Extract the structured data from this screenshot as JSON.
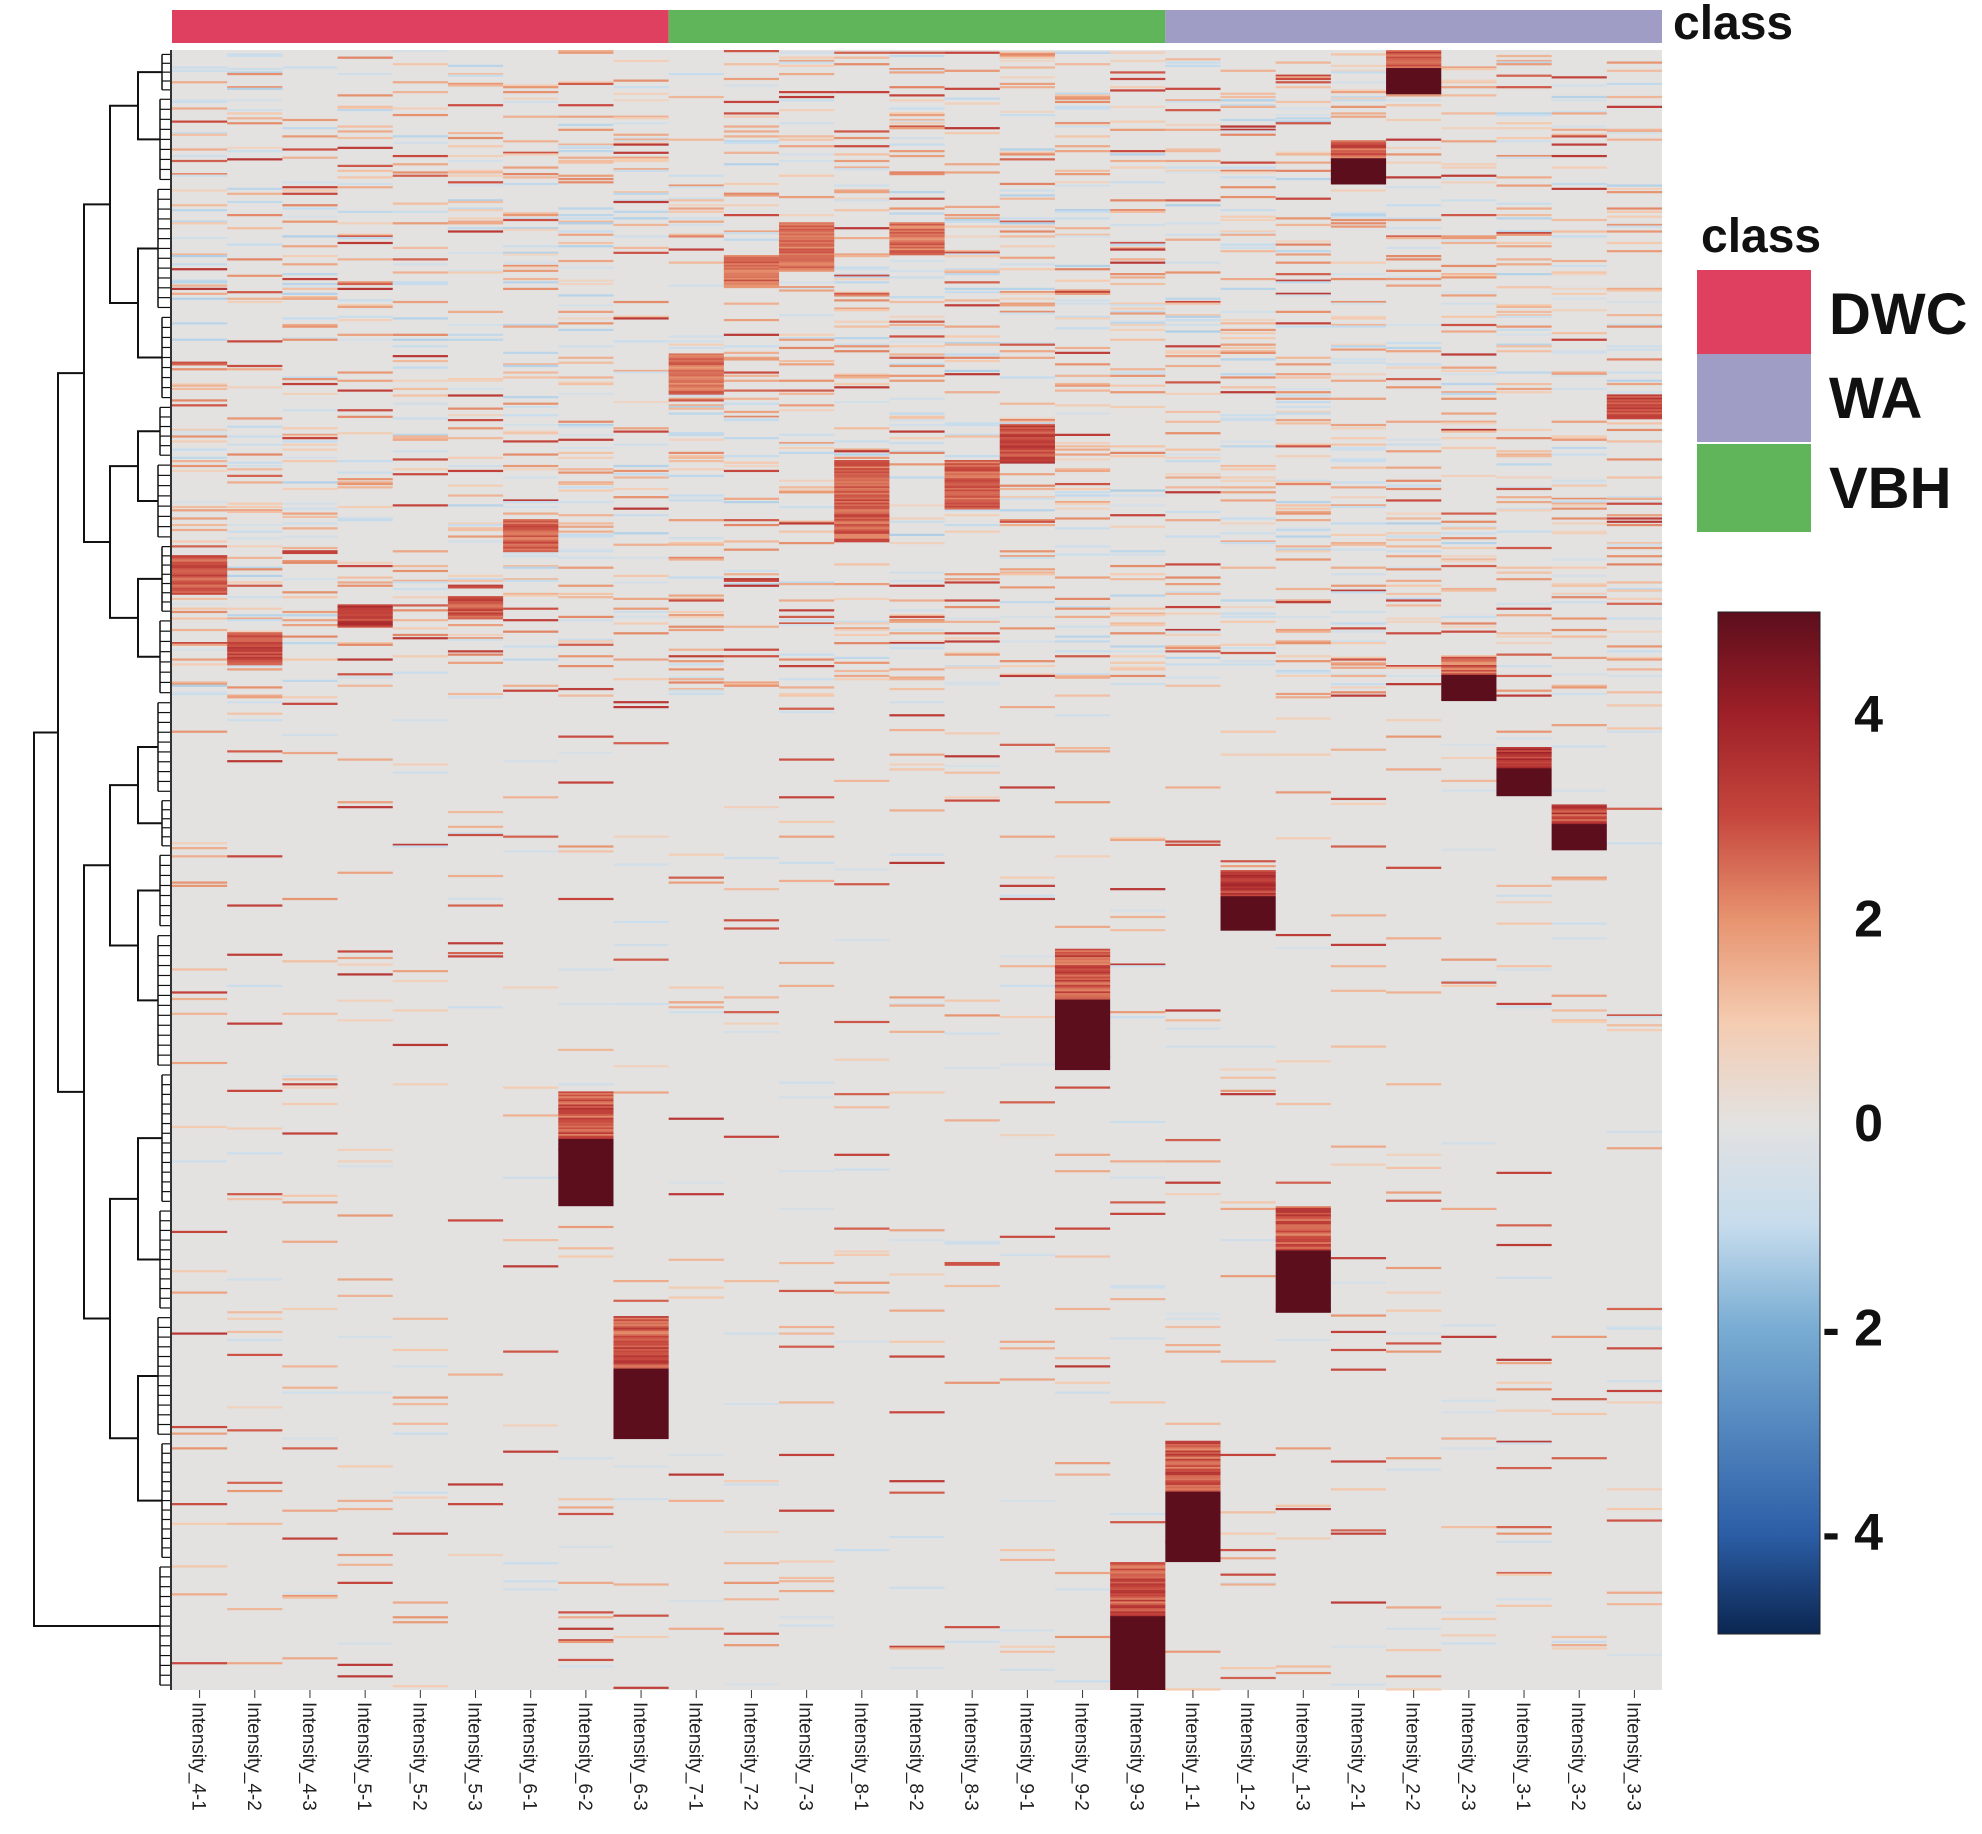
{
  "chart_data": {
    "type": "heatmap",
    "title": "",
    "row_count": 1000,
    "columns": [
      {
        "label": "Intensity_4-1",
        "class": "DWC"
      },
      {
        "label": "Intensity_4-2",
        "class": "DWC"
      },
      {
        "label": "Intensity_4-3",
        "class": "DWC"
      },
      {
        "label": "Intensity_5-1",
        "class": "DWC"
      },
      {
        "label": "Intensity_5-2",
        "class": "DWC"
      },
      {
        "label": "Intensity_5-3",
        "class": "DWC"
      },
      {
        "label": "Intensity_6-1",
        "class": "DWC"
      },
      {
        "label": "Intensity_6-2",
        "class": "DWC"
      },
      {
        "label": "Intensity_6-3",
        "class": "DWC"
      },
      {
        "label": "Intensity_7-1",
        "class": "VBH"
      },
      {
        "label": "Intensity_7-2",
        "class": "VBH"
      },
      {
        "label": "Intensity_7-3",
        "class": "VBH"
      },
      {
        "label": "Intensity_8-1",
        "class": "VBH"
      },
      {
        "label": "Intensity_8-2",
        "class": "VBH"
      },
      {
        "label": "Intensity_8-3",
        "class": "VBH"
      },
      {
        "label": "Intensity_9-1",
        "class": "VBH"
      },
      {
        "label": "Intensity_9-2",
        "class": "VBH"
      },
      {
        "label": "Intensity_9-3",
        "class": "VBH"
      },
      {
        "label": "Intensity_1-1",
        "class": "WA"
      },
      {
        "label": "Intensity_1-2",
        "class": "WA"
      },
      {
        "label": "Intensity_1-3",
        "class": "WA"
      },
      {
        "label": "Intensity_2-1",
        "class": "WA"
      },
      {
        "label": "Intensity_2-2",
        "class": "WA"
      },
      {
        "label": "Intensity_2-3",
        "class": "WA"
      },
      {
        "label": "Intensity_3-1",
        "class": "WA"
      },
      {
        "label": "Intensity_3-2",
        "class": "WA"
      },
      {
        "label": "Intensity_3-3",
        "class": "WA"
      }
    ],
    "class_annotation": {
      "title": "class",
      "legend_title": "class",
      "legend_entries": [
        {
          "name": "DWC",
          "color": "#e0405f"
        },
        {
          "name": "WA",
          "color": "#9f9cc6"
        },
        {
          "name": "VBH",
          "color": "#60b55b"
        }
      ]
    },
    "color_scale": {
      "min": -5,
      "max": 5,
      "ticks": [
        {
          "value": 4,
          "label": "4"
        },
        {
          "value": 2,
          "label": "2"
        },
        {
          "value": 0,
          "label": "0"
        },
        {
          "value": -2,
          "label": "- 2"
        },
        {
          "value": -4,
          "label": "- 4"
        }
      ],
      "stops": [
        {
          "value": -5,
          "color": "#0b2651"
        },
        {
          "value": -4,
          "color": "#2d5fa8"
        },
        {
          "value": -2,
          "color": "#79add3"
        },
        {
          "value": -1,
          "color": "#c6dced"
        },
        {
          "value": 0,
          "color": "#e3e2e1"
        },
        {
          "value": 1,
          "color": "#f4cbb0"
        },
        {
          "value": 2,
          "color": "#e7936f"
        },
        {
          "value": 3,
          "color": "#c6463d"
        },
        {
          "value": 4,
          "color": "#9e1f27"
        },
        {
          "value": 5,
          "color": "#5c0e1c"
        }
      ]
    },
    "high_blocks": [
      {
        "column": "Intensity_2-2",
        "rows": [
          0,
          27
        ],
        "value": 5,
        "lead_value": 2.8
      },
      {
        "column": "Intensity_2-1",
        "rows": [
          55,
          82
        ],
        "value": 5,
        "lead_value": 2.8
      },
      {
        "column": "Intensity_2-3",
        "rows": [
          370,
          397
        ],
        "value": 5,
        "lead_value": 2.6
      },
      {
        "column": "Intensity_3-1",
        "rows": [
          425,
          455
        ],
        "value": 5,
        "lead_value": 3.4
      },
      {
        "column": "Intensity_3-2",
        "rows": [
          460,
          488
        ],
        "value": 5,
        "lead_value": 3.0
      },
      {
        "column": "Intensity_1-2",
        "rows": [
          500,
          537
        ],
        "value": 5,
        "lead_value": 3.2
      },
      {
        "column": "Intensity_9-2",
        "rows": [
          548,
          622
        ],
        "value": 5,
        "lead_value": 2.8
      },
      {
        "column": "Intensity_6-2",
        "rows": [
          635,
          705
        ],
        "value": 5,
        "lead_value": 2.8
      },
      {
        "column": "Intensity_1-3",
        "rows": [
          705,
          770
        ],
        "value": 5,
        "lead_value": 2.8
      },
      {
        "column": "Intensity_6-3",
        "rows": [
          772,
          847
        ],
        "value": 5,
        "lead_value": 2.8
      },
      {
        "column": "Intensity_1-1",
        "rows": [
          848,
          922
        ],
        "value": 5,
        "lead_value": 2.8
      },
      {
        "column": "Intensity_9-3",
        "rows": [
          922,
          1000
        ],
        "value": 5,
        "lead_value": 2.8
      }
    ],
    "moderate_blocks": [
      {
        "column": "Intensity_4-1",
        "rows": [
          308,
          332
        ],
        "value": 2.8
      },
      {
        "column": "Intensity_4-2",
        "rows": [
          355,
          375
        ],
        "value": 3.0
      },
      {
        "column": "Intensity_5-1",
        "rows": [
          338,
          352
        ],
        "value": 3.2
      },
      {
        "column": "Intensity_5-3",
        "rows": [
          333,
          347
        ],
        "value": 2.8
      },
      {
        "column": "Intensity_6-1",
        "rows": [
          286,
          306
        ],
        "value": 2.6
      },
      {
        "column": "Intensity_7-1",
        "rows": [
          185,
          210
        ],
        "value": 2.4
      },
      {
        "column": "Intensity_7-2",
        "rows": [
          125,
          145
        ],
        "value": 2.4
      },
      {
        "column": "Intensity_7-3",
        "rows": [
          105,
          135
        ],
        "value": 2.4
      },
      {
        "column": "Intensity_8-1",
        "rows": [
          250,
          300
        ],
        "value": 2.6
      },
      {
        "column": "Intensity_8-2",
        "rows": [
          105,
          125
        ],
        "value": 2.4
      },
      {
        "column": "Intensity_8-3",
        "rows": [
          250,
          280
        ],
        "value": 2.6
      },
      {
        "column": "Intensity_9-1",
        "rows": [
          228,
          252
        ],
        "value": 3.0
      },
      {
        "column": "Intensity_3-3",
        "rows": [
          210,
          225
        ],
        "value": 3.0
      }
    ],
    "dendrogram": {
      "side": "left",
      "leaf_count": 1000
    }
  }
}
